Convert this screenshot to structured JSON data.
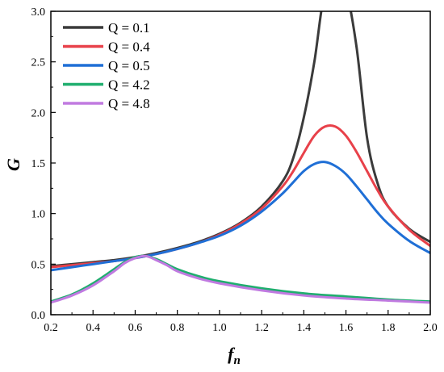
{
  "chart_data": {
    "type": "line",
    "xlabel": "f",
    "xlabel_subscript": "n",
    "ylabel": "G",
    "xlim": [
      0.2,
      2.0
    ],
    "ylim": [
      0.0,
      3.0
    ],
    "x_ticks": [
      "0.2",
      "0.4",
      "0.6",
      "0.8",
      "1.0",
      "1.2",
      "1.4",
      "1.6",
      "1.8",
      "2.0"
    ],
    "y_ticks": [
      "0.0",
      "0.5",
      "1.0",
      "1.5",
      "2.0",
      "2.5",
      "3.0"
    ],
    "grid": false,
    "legend_position": "top-left",
    "series": [
      {
        "name": "Q = 0.1",
        "color": "#3b3b3b",
        "x": [
          0.2,
          0.3,
          0.4,
          0.5,
          0.6,
          0.7,
          0.8,
          0.9,
          1.0,
          1.1,
          1.2,
          1.3,
          1.35,
          1.4,
          1.45,
          1.5,
          1.55,
          1.6,
          1.65,
          1.7,
          1.75,
          1.8,
          1.9,
          2.0
        ],
        "y": [
          0.48,
          0.5,
          0.52,
          0.54,
          0.57,
          0.61,
          0.66,
          0.72,
          0.8,
          0.91,
          1.07,
          1.32,
          1.55,
          1.95,
          2.5,
          3.2,
          3.2,
          3.2,
          2.65,
          1.75,
          1.3,
          1.07,
          0.85,
          0.72
        ]
      },
      {
        "name": "Q = 0.4",
        "color": "#e8414a",
        "x": [
          0.2,
          0.3,
          0.4,
          0.5,
          0.6,
          0.7,
          0.8,
          0.9,
          1.0,
          1.1,
          1.2,
          1.3,
          1.35,
          1.4,
          1.45,
          1.5,
          1.55,
          1.6,
          1.65,
          1.7,
          1.75,
          1.8,
          1.9,
          2.0
        ],
        "y": [
          0.47,
          0.49,
          0.51,
          0.53,
          0.56,
          0.6,
          0.65,
          0.71,
          0.79,
          0.9,
          1.05,
          1.27,
          1.42,
          1.6,
          1.77,
          1.86,
          1.86,
          1.77,
          1.61,
          1.42,
          1.23,
          1.07,
          0.84,
          0.68
        ]
      },
      {
        "name": "Q = 0.5",
        "color": "#1f6fd6",
        "x": [
          0.2,
          0.3,
          0.4,
          0.5,
          0.6,
          0.7,
          0.8,
          0.9,
          1.0,
          1.1,
          1.2,
          1.3,
          1.35,
          1.4,
          1.45,
          1.5,
          1.55,
          1.6,
          1.65,
          1.7,
          1.75,
          1.8,
          1.9,
          2.0
        ],
        "y": [
          0.44,
          0.47,
          0.5,
          0.53,
          0.56,
          0.6,
          0.65,
          0.71,
          0.78,
          0.88,
          1.02,
          1.2,
          1.31,
          1.42,
          1.49,
          1.51,
          1.47,
          1.39,
          1.27,
          1.14,
          1.01,
          0.9,
          0.73,
          0.61
        ]
      },
      {
        "name": "Q = 4.2",
        "color": "#1fae6e",
        "x": [
          0.2,
          0.3,
          0.4,
          0.5,
          0.55,
          0.6,
          0.65,
          0.7,
          0.75,
          0.8,
          0.9,
          1.0,
          1.2,
          1.4,
          1.6,
          1.8,
          2.0
        ],
        "y": [
          0.13,
          0.2,
          0.31,
          0.45,
          0.52,
          0.57,
          0.58,
          0.55,
          0.5,
          0.45,
          0.38,
          0.33,
          0.26,
          0.21,
          0.18,
          0.15,
          0.13
        ]
      },
      {
        "name": "Q = 4.8",
        "color": "#c07ae0",
        "x": [
          0.2,
          0.3,
          0.4,
          0.5,
          0.55,
          0.6,
          0.65,
          0.7,
          0.75,
          0.8,
          0.9,
          1.0,
          1.2,
          1.4,
          1.6,
          1.8,
          2.0
        ],
        "y": [
          0.12,
          0.19,
          0.29,
          0.43,
          0.51,
          0.56,
          0.58,
          0.54,
          0.49,
          0.43,
          0.36,
          0.31,
          0.24,
          0.19,
          0.16,
          0.14,
          0.12
        ]
      }
    ]
  }
}
